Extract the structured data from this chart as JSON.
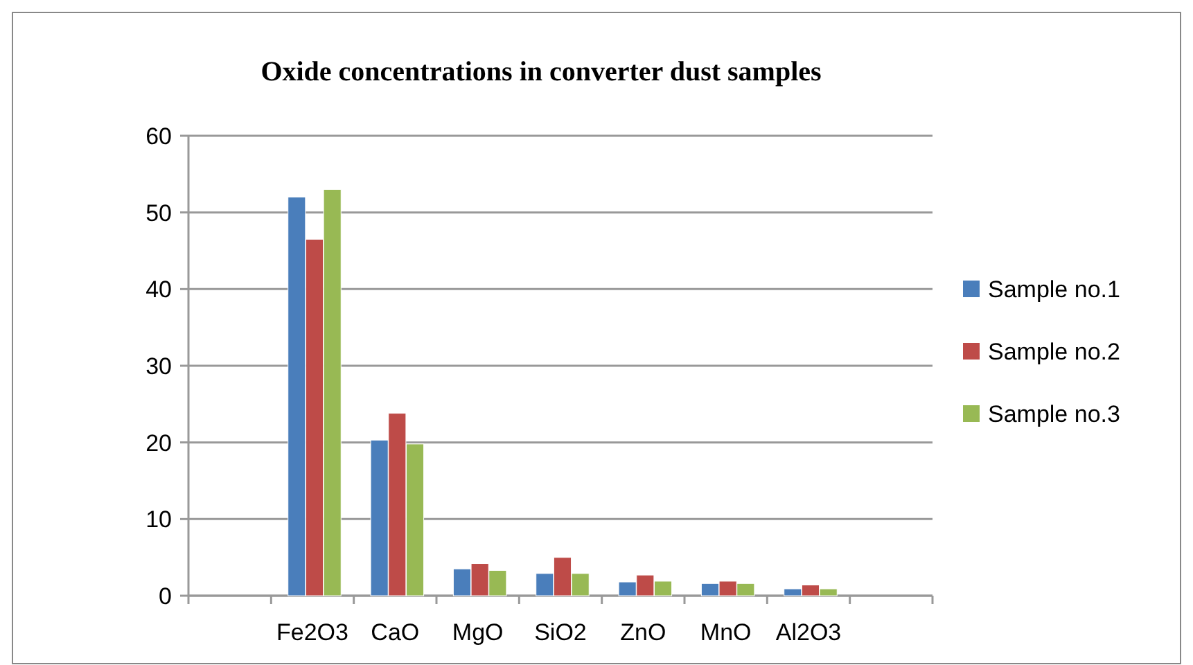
{
  "chart_data": {
    "type": "bar",
    "title": "Oxide concentrations in converter dust samples",
    "categories": [
      null,
      "Fe2O3",
      "CaO",
      "MgO",
      "SiO2",
      "ZnO",
      "MnO",
      "Al2O3",
      null
    ],
    "series": [
      {
        "name": "Sample no.1",
        "color": "#4a7ebb",
        "values": [
          null,
          52,
          20.3,
          3.5,
          2.9,
          1.8,
          1.6,
          0.9,
          null
        ]
      },
      {
        "name": "Sample no.2",
        "color": "#be4b48",
        "values": [
          null,
          46.5,
          23.8,
          4.2,
          5,
          2.7,
          1.9,
          1.4,
          null
        ]
      },
      {
        "name": "Sample no.3",
        "color": "#98b954",
        "values": [
          null,
          53,
          19.8,
          3.3,
          2.9,
          1.9,
          1.6,
          0.9,
          null
        ]
      }
    ],
    "ylim": [
      0,
      60
    ],
    "yticks": [
      0,
      10,
      20,
      30,
      40,
      50,
      60
    ],
    "grid": "y",
    "legend": "right"
  }
}
